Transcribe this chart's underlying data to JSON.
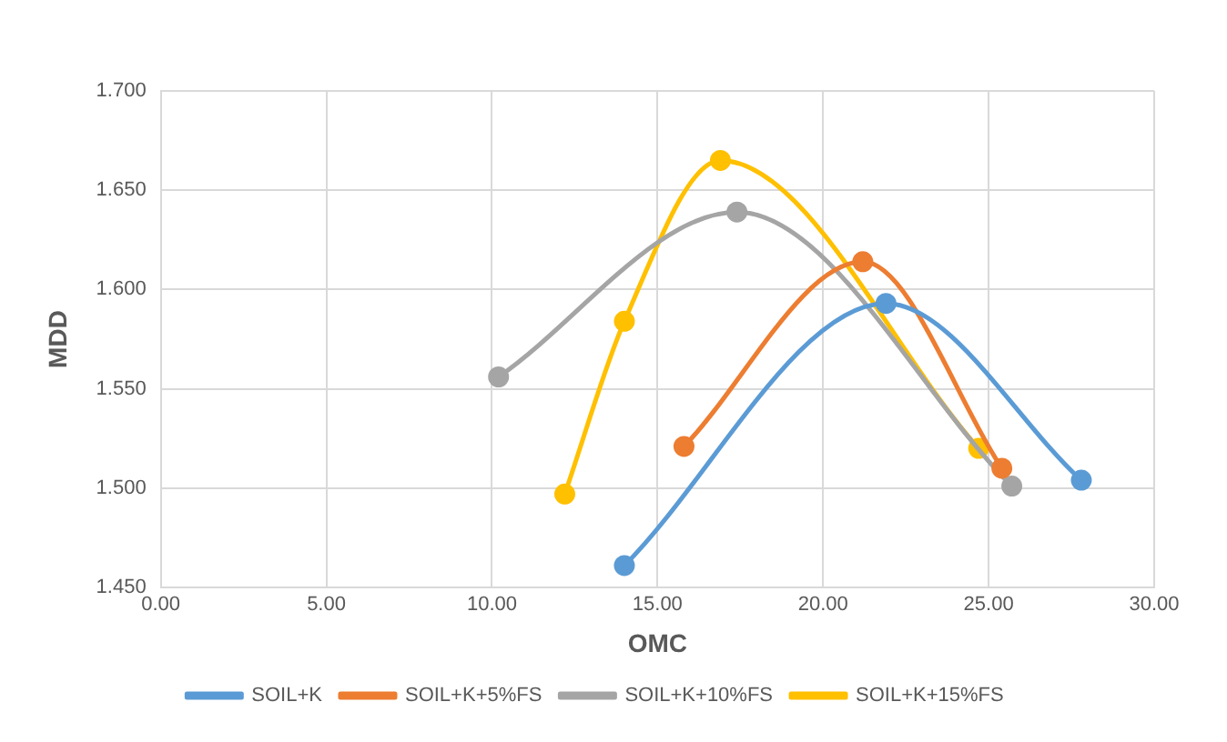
{
  "chart_data": {
    "type": "line",
    "xlabel": "OMC",
    "ylabel": "MDD",
    "xlim": [
      0,
      30
    ],
    "xticks": [
      {
        "value": 0,
        "label": "0.00"
      },
      {
        "value": 5,
        "label": "5.00"
      },
      {
        "value": 10,
        "label": "10.00"
      },
      {
        "value": 15,
        "label": "15.00"
      },
      {
        "value": 20,
        "label": "20.00"
      },
      {
        "value": 25,
        "label": "25.00"
      },
      {
        "value": 30,
        "label": "30.00"
      }
    ],
    "ylim": [
      1.45,
      1.7
    ],
    "yticks": [
      {
        "value": 1.45,
        "label": "1.450"
      },
      {
        "value": 1.5,
        "label": "1.500"
      },
      {
        "value": 1.55,
        "label": "1.550"
      },
      {
        "value": 1.6,
        "label": "1.600"
      },
      {
        "value": 1.65,
        "label": "1.650"
      },
      {
        "value": 1.7,
        "label": "1.700"
      }
    ],
    "grid": true,
    "legend": "bottom",
    "marker": "circle",
    "line_style": "solid",
    "series": [
      {
        "name": "SOIL+K",
        "color": "#5b9bd5",
        "x": [
          14.0,
          21.9,
          27.8
        ],
        "values": [
          1.461,
          1.593,
          1.504
        ]
      },
      {
        "name": "SOIL+K+5%FS",
        "color": "#ed7d31",
        "x": [
          15.8,
          21.2,
          25.4
        ],
        "values": [
          1.521,
          1.614,
          1.51
        ]
      },
      {
        "name": "SOIL+K+10%FS",
        "color": "#a5a5a5",
        "x": [
          10.2,
          17.4,
          25.7
        ],
        "values": [
          1.556,
          1.639,
          1.501
        ]
      },
      {
        "name": "SOIL+K+15%FS",
        "color": "#ffc000",
        "x": [
          12.2,
          14.0,
          16.9,
          24.7
        ],
        "values": [
          1.497,
          1.584,
          1.665,
          1.52
        ]
      }
    ]
  }
}
